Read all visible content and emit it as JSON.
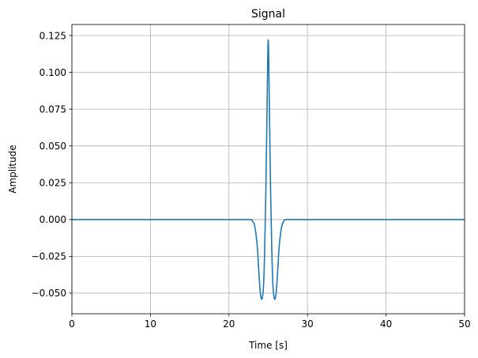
{
  "chart_data": {
    "type": "line",
    "title": "Signal",
    "xlabel": "Time [s]",
    "ylabel": "Amplitude",
    "xlim": [
      0,
      50
    ],
    "ylim": [
      -0.064,
      0.1325
    ],
    "xticks": [
      0,
      10,
      20,
      30,
      40,
      50
    ],
    "xtick_labels": [
      "0",
      "10",
      "20",
      "30",
      "40",
      "50"
    ],
    "yticks": [
      -0.05,
      -0.025,
      0.0,
      0.025,
      0.05,
      0.075,
      0.1,
      0.125
    ],
    "ytick_labels": [
      "−0.050",
      "−0.025",
      "0.000",
      "0.025",
      "0.050",
      "0.075",
      "0.100",
      "0.125"
    ],
    "grid": true,
    "series": [
      {
        "color": "#1f77b4",
        "x": [
          0,
          20,
          22.6,
          23.0,
          23.3,
          23.6,
          23.8,
          24.0,
          24.2,
          24.4,
          24.55,
          24.7,
          24.85,
          25.0,
          25.15,
          25.3,
          25.45,
          25.6,
          25.8,
          26.0,
          26.2,
          26.4,
          26.7,
          27.0,
          27.4,
          30,
          50
        ],
        "y": [
          0,
          0,
          0,
          -0.001,
          -0.005,
          -0.018,
          -0.035,
          -0.05,
          -0.054,
          -0.045,
          -0.02,
          0.02,
          0.075,
          0.122,
          0.075,
          0.02,
          -0.02,
          -0.045,
          -0.054,
          -0.05,
          -0.035,
          -0.018,
          -0.005,
          -0.001,
          0,
          0,
          0
        ]
      }
    ]
  }
}
